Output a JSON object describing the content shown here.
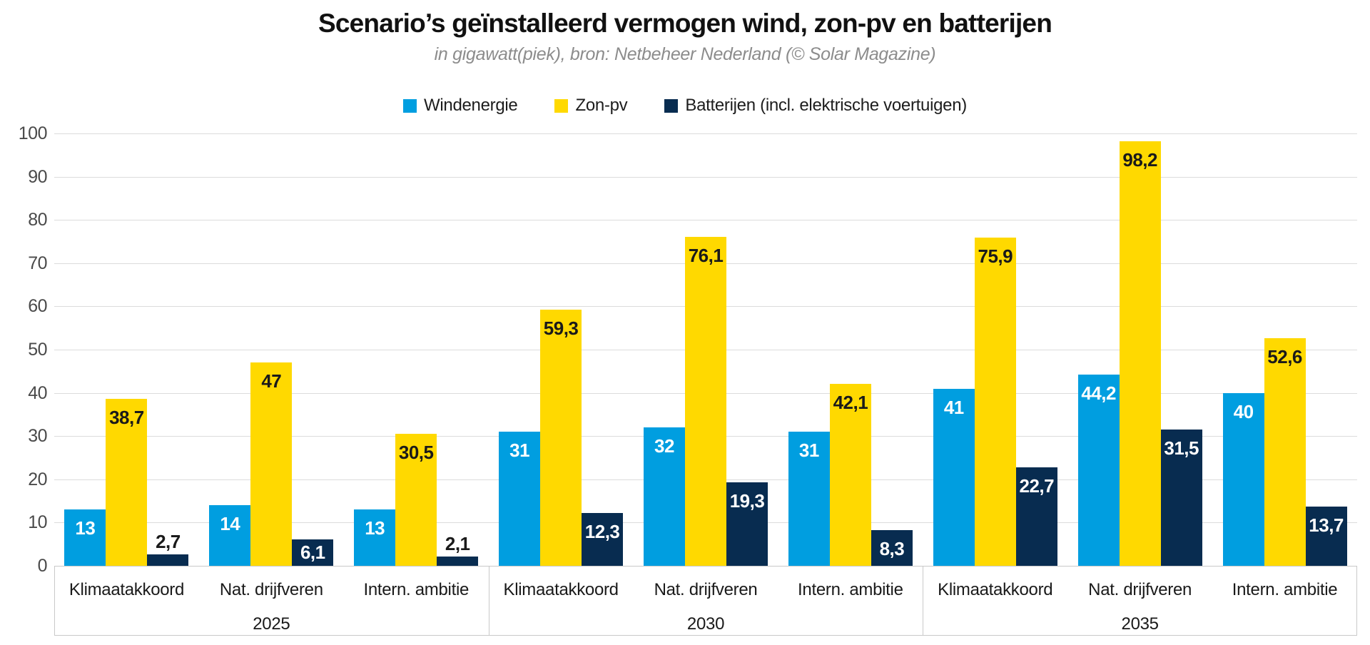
{
  "header": {
    "title": "Scenario’s geïnstalleerd vermogen wind, zon-pv en batterijen",
    "subtitle": "in gigawatt(piek), bron: Netbeheer Nederland (© Solar Magazine)"
  },
  "colors": {
    "wind": "#009EE0",
    "zon_pv": "#FFD900",
    "batterijen": "#082C50",
    "gridline": "#DCDCDC",
    "axis_box_border": "#C9C9C9",
    "tick_label": "#4A4A4A",
    "category_label": "#1A1A1A",
    "value_label_dark": "#1A1A1A",
    "value_label_light": "#FFFFFF",
    "title_text": "#111111",
    "subtitle_text": "#8C8C8C",
    "background": "#FFFFFF"
  },
  "chart_data": {
    "type": "bar",
    "title": "Scenario’s geïnstalleerd vermogen wind, zon-pv en batterijen",
    "subtitle": "in gigawatt(piek), bron: Netbeheer Nederland (© Solar Magazine)",
    "unit": "gigawatt(piek)",
    "grid": true,
    "legend_position": "top",
    "ylim": [
      0,
      100
    ],
    "yticks": [
      0,
      10,
      20,
      30,
      40,
      50,
      60,
      70,
      80,
      90,
      100
    ],
    "group_years": [
      "2025",
      "2030",
      "2035"
    ],
    "categories": [
      "Klimaatakkoord",
      "Nat. drijfveren",
      "Intern. ambitie",
      "Klimaatakkoord",
      "Nat. drijfveren",
      "Intern. ambitie",
      "Klimaatakkoord",
      "Nat. drijfveren",
      "Intern. ambitie"
    ],
    "series": [
      {
        "key": "windenergie",
        "name": "Windenergie",
        "color": "#009EE0",
        "label_color": "#FFFFFF",
        "values": [
          13,
          14,
          13,
          31,
          32,
          31,
          41,
          44.2,
          40
        ],
        "labels": [
          "13",
          "14",
          "13",
          "31",
          "32",
          "31",
          "41",
          "44,2",
          "40"
        ]
      },
      {
        "key": "zon-pv",
        "name": "Zon-pv",
        "color": "#FFD900",
        "label_color": "#1A1A1A",
        "values": [
          38.7,
          47,
          30.5,
          59.3,
          76.1,
          42.1,
          75.9,
          98.2,
          52.6
        ],
        "labels": [
          "38,7",
          "47",
          "30,5",
          "59,3",
          "76,1",
          "42,1",
          "75,9",
          "98,2",
          "52,6"
        ]
      },
      {
        "key": "batterijen",
        "name": "Batterijen (incl. elektrische voertuigen)",
        "color": "#082C50",
        "label_color": "#FFFFFF",
        "values": [
          2.7,
          6.1,
          2.1,
          12.3,
          19.3,
          8.3,
          22.7,
          31.5,
          13.7
        ],
        "labels": [
          "2,7",
          "6,1",
          "2,1",
          "12,3",
          "19,3",
          "8,3",
          "22,7",
          "31,5",
          "13,7"
        ]
      }
    ]
  }
}
